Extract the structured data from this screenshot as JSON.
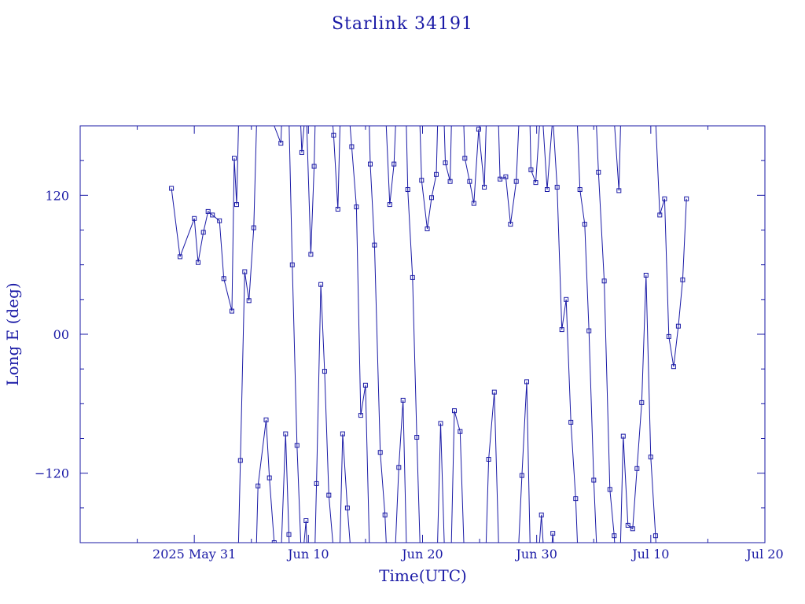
{
  "chart_data": {
    "type": "line",
    "title": "Starlink 34191",
    "xlabel": "Time(UTC)",
    "ylabel": "Long E (deg)",
    "xlim": [
      "2025-05-21",
      "2025-07-20"
    ],
    "ylim": [
      -180,
      180
    ],
    "x_ticks": [
      {
        "date": "2025-05-31",
        "label": "2025 May 31"
      },
      {
        "date": "2025-06-10",
        "label": "Jun 10"
      },
      {
        "date": "2025-06-20",
        "label": "Jun 20"
      },
      {
        "date": "2025-06-30",
        "label": "Jun 30"
      },
      {
        "date": "2025-07-10",
        "label": "Jul 10"
      },
      {
        "date": "2025-07-20",
        "label": "Jul 20"
      }
    ],
    "y_ticks": [
      {
        "value": 120,
        "label": "120"
      },
      {
        "value": 0,
        "label": "00"
      },
      {
        "value": -120,
        "label": "−120"
      }
    ],
    "grid": false,
    "legend": "none",
    "colors": {
      "line": "#1a1aa6",
      "text": "#1a1aa6",
      "axis": "#1a1aa6",
      "background": "#ffffff"
    },
    "series": [
      {
        "x": [
          "2025-05-29 00:00",
          "2025-05-29 18:00",
          "2025-05-31 00:00",
          "2025-05-31 08:00",
          "2025-05-31 19:00",
          "2025-06-01 05:00",
          "2025-06-01 14:00",
          "2025-06-02 05:00",
          "2025-06-02 14:00",
          "2025-06-03 07:00",
          "2025-06-03 12:00",
          "2025-06-03 17:00",
          "2025-06-04 01:00",
          "2025-06-04 10:00",
          "2025-06-04 19:00",
          "2025-06-05 05:00",
          "2025-06-05 14:00",
          "2025-06-06 07:00",
          "2025-06-06 14:00",
          "2025-06-07 00:00",
          "2025-06-07 14:00",
          "2025-06-08 00:00",
          "2025-06-08 07:00",
          "2025-06-08 14:00",
          "2025-06-09 00:00",
          "2025-06-09 10:00",
          "2025-06-09 19:00",
          "2025-06-10 05:00",
          "2025-06-10 12:00",
          "2025-06-10 17:00",
          "2025-06-11 02:00",
          "2025-06-11 10:00",
          "2025-06-11 19:00",
          "2025-06-12 05:00",
          "2025-06-12 14:00",
          "2025-06-13 00:00",
          "2025-06-13 10:00",
          "2025-06-13 19:00",
          "2025-06-14 05:00",
          "2025-06-14 14:00",
          "2025-06-15 00:00",
          "2025-06-15 10:00",
          "2025-06-15 19:00",
          "2025-06-16 07:00",
          "2025-06-16 17:00",
          "2025-06-17 03:00",
          "2025-06-17 12:00",
          "2025-06-17 22:00",
          "2025-06-18 07:00",
          "2025-06-18 17:00",
          "2025-06-19 03:00",
          "2025-06-19 12:00",
          "2025-06-19 22:00",
          "2025-06-20 10:00",
          "2025-06-20 19:00",
          "2025-06-21 05:00",
          "2025-06-21 14:00",
          "2025-06-22 00:00",
          "2025-06-22 10:00",
          "2025-06-22 19:00",
          "2025-06-23 07:00",
          "2025-06-23 17:00",
          "2025-06-24 03:00",
          "2025-06-24 12:00",
          "2025-06-24 22:00",
          "2025-06-25 10:00",
          "2025-06-25 19:00",
          "2025-06-26 07:00",
          "2025-06-26 19:00",
          "2025-06-27 07:00",
          "2025-06-27 17:00",
          "2025-06-28 05:00",
          "2025-06-28 17:00",
          "2025-06-29 03:00",
          "2025-06-29 12:00",
          "2025-06-29 22:00",
          "2025-06-30 10:00",
          "2025-06-30 22:00",
          "2025-07-01 10:00",
          "2025-07-01 19:00",
          "2025-07-02 05:00",
          "2025-07-02 14:00",
          "2025-07-03 00:00",
          "2025-07-03 10:00",
          "2025-07-03 19:00",
          "2025-07-04 05:00",
          "2025-07-04 14:00",
          "2025-07-05 00:00",
          "2025-07-05 10:00",
          "2025-07-05 22:00",
          "2025-07-06 10:00",
          "2025-07-06 19:00",
          "2025-07-07 05:00",
          "2025-07-07 14:00",
          "2025-07-08 00:00",
          "2025-07-08 10:00",
          "2025-07-08 19:00",
          "2025-07-09 05:00",
          "2025-07-09 14:00",
          "2025-07-10 00:00",
          "2025-07-10 10:00",
          "2025-07-10 19:00",
          "2025-07-11 05:00",
          "2025-07-11 14:00",
          "2025-07-12 00:00",
          "2025-07-12 10:00",
          "2025-07-12 19:00",
          "2025-07-13 03:00"
        ],
        "y": [
          126,
          67,
          100,
          62,
          88,
          106,
          103,
          98,
          48,
          20,
          152,
          112,
          -109,
          54,
          29,
          92,
          -131,
          -74,
          -124,
          -180,
          165,
          -86,
          -173,
          60,
          -96,
          157,
          -161,
          69,
          145,
          -129,
          43,
          -32,
          -139,
          172,
          108,
          -86,
          -150,
          162,
          110,
          -70,
          -44,
          147,
          77,
          -102,
          -156,
          112,
          147,
          -115,
          -57,
          125,
          49,
          -89,
          133,
          91,
          118,
          138,
          -77,
          148,
          132,
          -66,
          -84,
          152,
          132,
          113,
          177,
          127,
          -108,
          -50,
          134,
          136,
          95,
          132,
          -122,
          -41,
          142,
          131,
          -156,
          125,
          -172,
          127,
          4,
          30,
          -76,
          -142,
          125,
          95,
          3,
          -126,
          140,
          46,
          -134,
          -174,
          124,
          -88,
          -165,
          -168,
          -116,
          -59,
          51,
          -106,
          -174,
          103,
          117,
          -2,
          -28,
          7,
          47,
          117
        ],
        "name": ""
      }
    ]
  }
}
